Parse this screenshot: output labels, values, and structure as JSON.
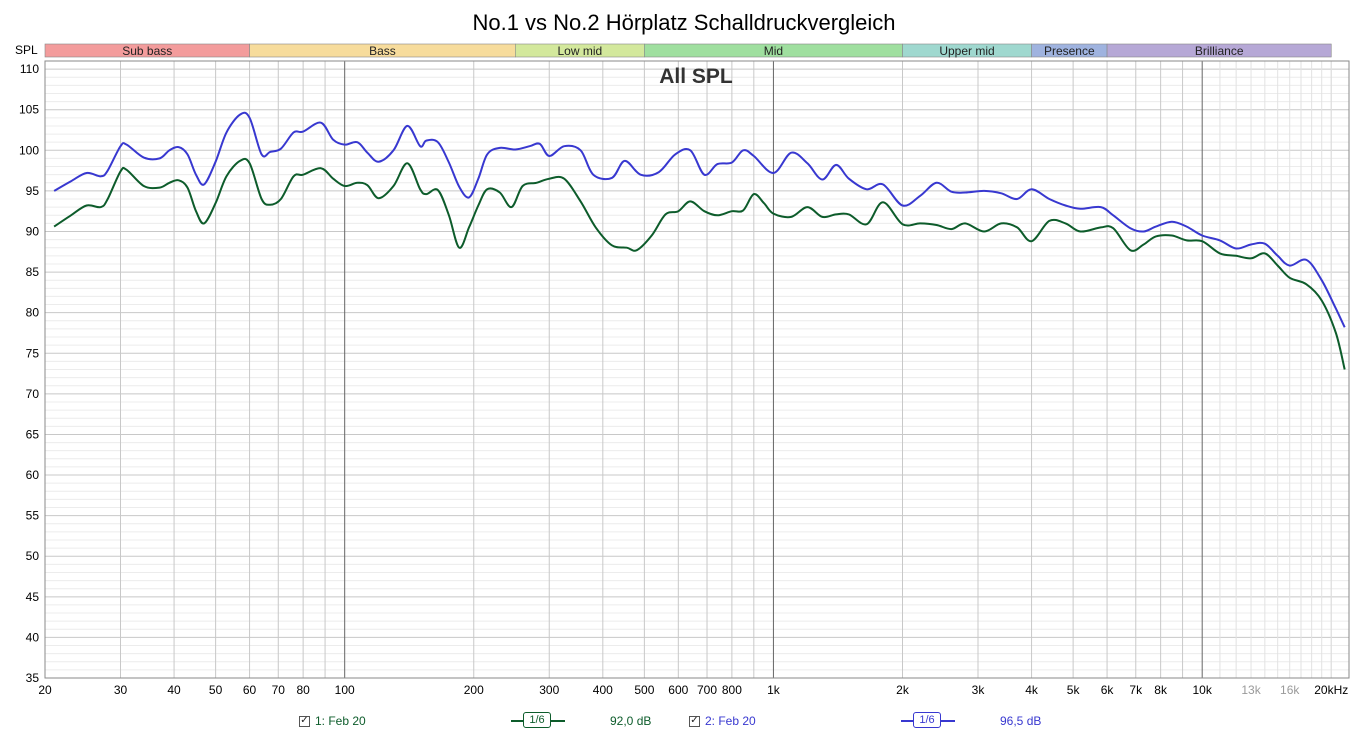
{
  "chart_data": {
    "type": "line",
    "title": "No.1 vs No.2 Hörplatz Schalldruckvergleich",
    "overlay_label": "All SPL",
    "ylabel": "SPL",
    "xscale": "log",
    "xlim": [
      20,
      22000
    ],
    "ylim": [
      35,
      111
    ],
    "grid": true,
    "yticks": [
      "110",
      "105",
      "100",
      "95",
      "90",
      "85",
      "80",
      "75",
      "70",
      "65",
      "60",
      "55",
      "50",
      "45",
      "40",
      "35"
    ],
    "xticks": [
      {
        "f": 20,
        "label": "20"
      },
      {
        "f": 30,
        "label": "30"
      },
      {
        "f": 40,
        "label": "40"
      },
      {
        "f": 50,
        "label": "50"
      },
      {
        "f": 60,
        "label": "60"
      },
      {
        "f": 70,
        "label": "70"
      },
      {
        "f": 80,
        "label": "80"
      },
      {
        "f": 100,
        "label": "100"
      },
      {
        "f": 200,
        "label": "200"
      },
      {
        "f": 300,
        "label": "300"
      },
      {
        "f": 400,
        "label": "400"
      },
      {
        "f": 500,
        "label": "500"
      },
      {
        "f": 600,
        "label": "600"
      },
      {
        "f": 700,
        "label": "700"
      },
      {
        "f": 800,
        "label": "800"
      },
      {
        "f": 1000,
        "label": "1k"
      },
      {
        "f": 2000,
        "label": "2k"
      },
      {
        "f": 3000,
        "label": "3k"
      },
      {
        "f": 4000,
        "label": "4k"
      },
      {
        "f": 5000,
        "label": "5k"
      },
      {
        "f": 6000,
        "label": "6k"
      },
      {
        "f": 7000,
        "label": "7k"
      },
      {
        "f": 8000,
        "label": "8k"
      },
      {
        "f": 10000,
        "label": "10k"
      },
      {
        "f": 13000,
        "label": "13k",
        "muted": true
      },
      {
        "f": 16000,
        "label": "16k",
        "muted": true
      },
      {
        "f": 20000,
        "label": "20kHz"
      }
    ],
    "bands": [
      {
        "name": "Sub bass",
        "from": 20,
        "to": 60,
        "color": "#f39c9c"
      },
      {
        "name": "Bass",
        "from": 60,
        "to": 250,
        "color": "#f7dc9c"
      },
      {
        "name": "Low mid",
        "from": 250,
        "to": 500,
        "color": "#d3e89c"
      },
      {
        "name": "Mid",
        "from": 500,
        "to": 2000,
        "color": "#9fdf9f"
      },
      {
        "name": "Upper mid",
        "from": 2000,
        "to": 4000,
        "color": "#9fd8cf"
      },
      {
        "name": "Presence",
        "from": 4000,
        "to": 6000,
        "color": "#9fb3df"
      },
      {
        "name": "Brilliance",
        "from": 6000,
        "to": 20000,
        "color": "#b6a8d6"
      }
    ],
    "series": [
      {
        "name": "1: Feb 20",
        "color": "#0d5c2b",
        "smoothing": "6",
        "level": "92,0 dB",
        "points": [
          [
            21,
            90.6
          ],
          [
            23,
            92.0
          ],
          [
            25,
            93.2
          ],
          [
            27,
            93.0
          ],
          [
            28,
            94.0
          ],
          [
            30,
            97.4
          ],
          [
            31,
            97.6
          ],
          [
            34,
            95.6
          ],
          [
            37,
            95.4
          ],
          [
            39,
            96.0
          ],
          [
            41,
            96.3
          ],
          [
            43,
            95.4
          ],
          [
            45,
            92.5
          ],
          [
            47,
            91.0
          ],
          [
            50,
            93.5
          ],
          [
            53,
            96.8
          ],
          [
            57,
            98.7
          ],
          [
            60,
            98.4
          ],
          [
            64,
            94.0
          ],
          [
            67,
            93.3
          ],
          [
            71,
            94.0
          ],
          [
            76,
            96.8
          ],
          [
            80,
            97.0
          ],
          [
            88,
            97.8
          ],
          [
            94,
            96.5
          ],
          [
            100,
            95.6
          ],
          [
            107,
            96.0
          ],
          [
            113,
            95.7
          ],
          [
            120,
            94.1
          ],
          [
            130,
            95.6
          ],
          [
            140,
            98.4
          ],
          [
            150,
            95.2
          ],
          [
            155,
            94.6
          ],
          [
            165,
            95.1
          ],
          [
            175,
            92.0
          ],
          [
            185,
            88.0
          ],
          [
            195,
            90.5
          ],
          [
            205,
            93.2
          ],
          [
            215,
            95.2
          ],
          [
            230,
            94.8
          ],
          [
            245,
            93.0
          ],
          [
            260,
            95.6
          ],
          [
            280,
            96.0
          ],
          [
            300,
            96.5
          ],
          [
            325,
            96.5
          ],
          [
            355,
            93.7
          ],
          [
            385,
            90.5
          ],
          [
            420,
            88.3
          ],
          [
            455,
            88.0
          ],
          [
            480,
            87.7
          ],
          [
            520,
            89.5
          ],
          [
            560,
            92.1
          ],
          [
            600,
            92.5
          ],
          [
            640,
            93.7
          ],
          [
            690,
            92.5
          ],
          [
            740,
            92.0
          ],
          [
            800,
            92.5
          ],
          [
            850,
            92.6
          ],
          [
            900,
            94.6
          ],
          [
            950,
            93.5
          ],
          [
            1000,
            92.2
          ],
          [
            1100,
            91.8
          ],
          [
            1200,
            93.0
          ],
          [
            1300,
            91.8
          ],
          [
            1400,
            92.1
          ],
          [
            1500,
            92.1
          ],
          [
            1650,
            90.9
          ],
          [
            1800,
            93.6
          ],
          [
            2000,
            90.9
          ],
          [
            2200,
            91.0
          ],
          [
            2400,
            90.8
          ],
          [
            2600,
            90.3
          ],
          [
            2800,
            91.0
          ],
          [
            3100,
            90.0
          ],
          [
            3400,
            91.0
          ],
          [
            3700,
            90.5
          ],
          [
            4000,
            88.8
          ],
          [
            4400,
            91.3
          ],
          [
            4800,
            91.0
          ],
          [
            5200,
            90.0
          ],
          [
            5800,
            90.5
          ],
          [
            6200,
            90.4
          ],
          [
            6800,
            87.7
          ],
          [
            7300,
            88.4
          ],
          [
            7800,
            89.4
          ],
          [
            8500,
            89.5
          ],
          [
            9200,
            88.9
          ],
          [
            10000,
            88.8
          ],
          [
            11000,
            87.3
          ],
          [
            12000,
            87.0
          ],
          [
            13000,
            86.7
          ],
          [
            14000,
            87.3
          ],
          [
            15000,
            85.8
          ],
          [
            16000,
            84.3
          ],
          [
            17500,
            83.5
          ],
          [
            19000,
            81.5
          ],
          [
            20500,
            77.5
          ],
          [
            21500,
            73.0
          ]
        ]
      },
      {
        "name": "2: Feb 20",
        "color": "#3838d0",
        "smoothing": "6",
        "level": "96,5 dB",
        "points": [
          [
            21,
            95.0
          ],
          [
            23,
            96.2
          ],
          [
            25,
            97.2
          ],
          [
            27,
            96.8
          ],
          [
            28,
            97.5
          ],
          [
            30,
            100.5
          ],
          [
            31,
            100.7
          ],
          [
            34,
            99.1
          ],
          [
            37,
            99.0
          ],
          [
            39,
            100.0
          ],
          [
            41,
            100.4
          ],
          [
            43,
            99.5
          ],
          [
            45,
            97.0
          ],
          [
            47,
            95.8
          ],
          [
            50,
            98.6
          ],
          [
            53,
            102.2
          ],
          [
            57,
            104.4
          ],
          [
            60,
            104.0
          ],
          [
            64,
            99.5
          ],
          [
            67,
            99.8
          ],
          [
            71,
            100.2
          ],
          [
            76,
            102.2
          ],
          [
            80,
            102.3
          ],
          [
            88,
            103.4
          ],
          [
            94,
            101.3
          ],
          [
            100,
            100.7
          ],
          [
            107,
            101.0
          ],
          [
            113,
            99.7
          ],
          [
            120,
            98.6
          ],
          [
            130,
            100.0
          ],
          [
            140,
            103.0
          ],
          [
            150,
            100.5
          ],
          [
            155,
            101.2
          ],
          [
            165,
            101.0
          ],
          [
            175,
            98.5
          ],
          [
            185,
            95.5
          ],
          [
            195,
            94.2
          ],
          [
            205,
            96.5
          ],
          [
            215,
            99.5
          ],
          [
            230,
            100.3
          ],
          [
            250,
            100.1
          ],
          [
            270,
            100.5
          ],
          [
            285,
            100.8
          ],
          [
            300,
            99.3
          ],
          [
            325,
            100.5
          ],
          [
            355,
            100.0
          ],
          [
            380,
            97.0
          ],
          [
            420,
            96.6
          ],
          [
            450,
            98.7
          ],
          [
            490,
            97.0
          ],
          [
            540,
            97.3
          ],
          [
            590,
            99.5
          ],
          [
            640,
            100.0
          ],
          [
            690,
            97.0
          ],
          [
            740,
            98.3
          ],
          [
            800,
            98.5
          ],
          [
            850,
            100.0
          ],
          [
            900,
            99.3
          ],
          [
            1000,
            97.2
          ],
          [
            1100,
            99.7
          ],
          [
            1200,
            98.4
          ],
          [
            1300,
            96.4
          ],
          [
            1400,
            98.2
          ],
          [
            1500,
            96.5
          ],
          [
            1650,
            95.2
          ],
          [
            1800,
            95.8
          ],
          [
            2000,
            93.2
          ],
          [
            2200,
            94.4
          ],
          [
            2400,
            96.0
          ],
          [
            2600,
            94.9
          ],
          [
            2800,
            94.8
          ],
          [
            3100,
            95.0
          ],
          [
            3400,
            94.7
          ],
          [
            3700,
            94.0
          ],
          [
            4000,
            95.2
          ],
          [
            4400,
            94.0
          ],
          [
            4800,
            93.2
          ],
          [
            5200,
            92.8
          ],
          [
            5800,
            93.0
          ],
          [
            6200,
            92.0
          ],
          [
            6800,
            90.4
          ],
          [
            7300,
            90.0
          ],
          [
            7800,
            90.6
          ],
          [
            8500,
            91.2
          ],
          [
            9200,
            90.6
          ],
          [
            10000,
            89.5
          ],
          [
            11000,
            88.9
          ],
          [
            12000,
            87.9
          ],
          [
            13000,
            88.4
          ],
          [
            14000,
            88.5
          ],
          [
            15000,
            87.0
          ],
          [
            16000,
            85.8
          ],
          [
            17500,
            86.5
          ],
          [
            19000,
            84.0
          ],
          [
            20500,
            80.5
          ],
          [
            21500,
            78.2
          ]
        ]
      }
    ]
  },
  "legend": {
    "items": [
      {
        "checked": "✓",
        "label": "1: Feb 20",
        "smoothing": "1/6",
        "level": "92,0 dB"
      },
      {
        "checked": "✓",
        "label": "2: Feb 20",
        "smoothing": "1/6",
        "level": "96,5 dB"
      }
    ]
  }
}
